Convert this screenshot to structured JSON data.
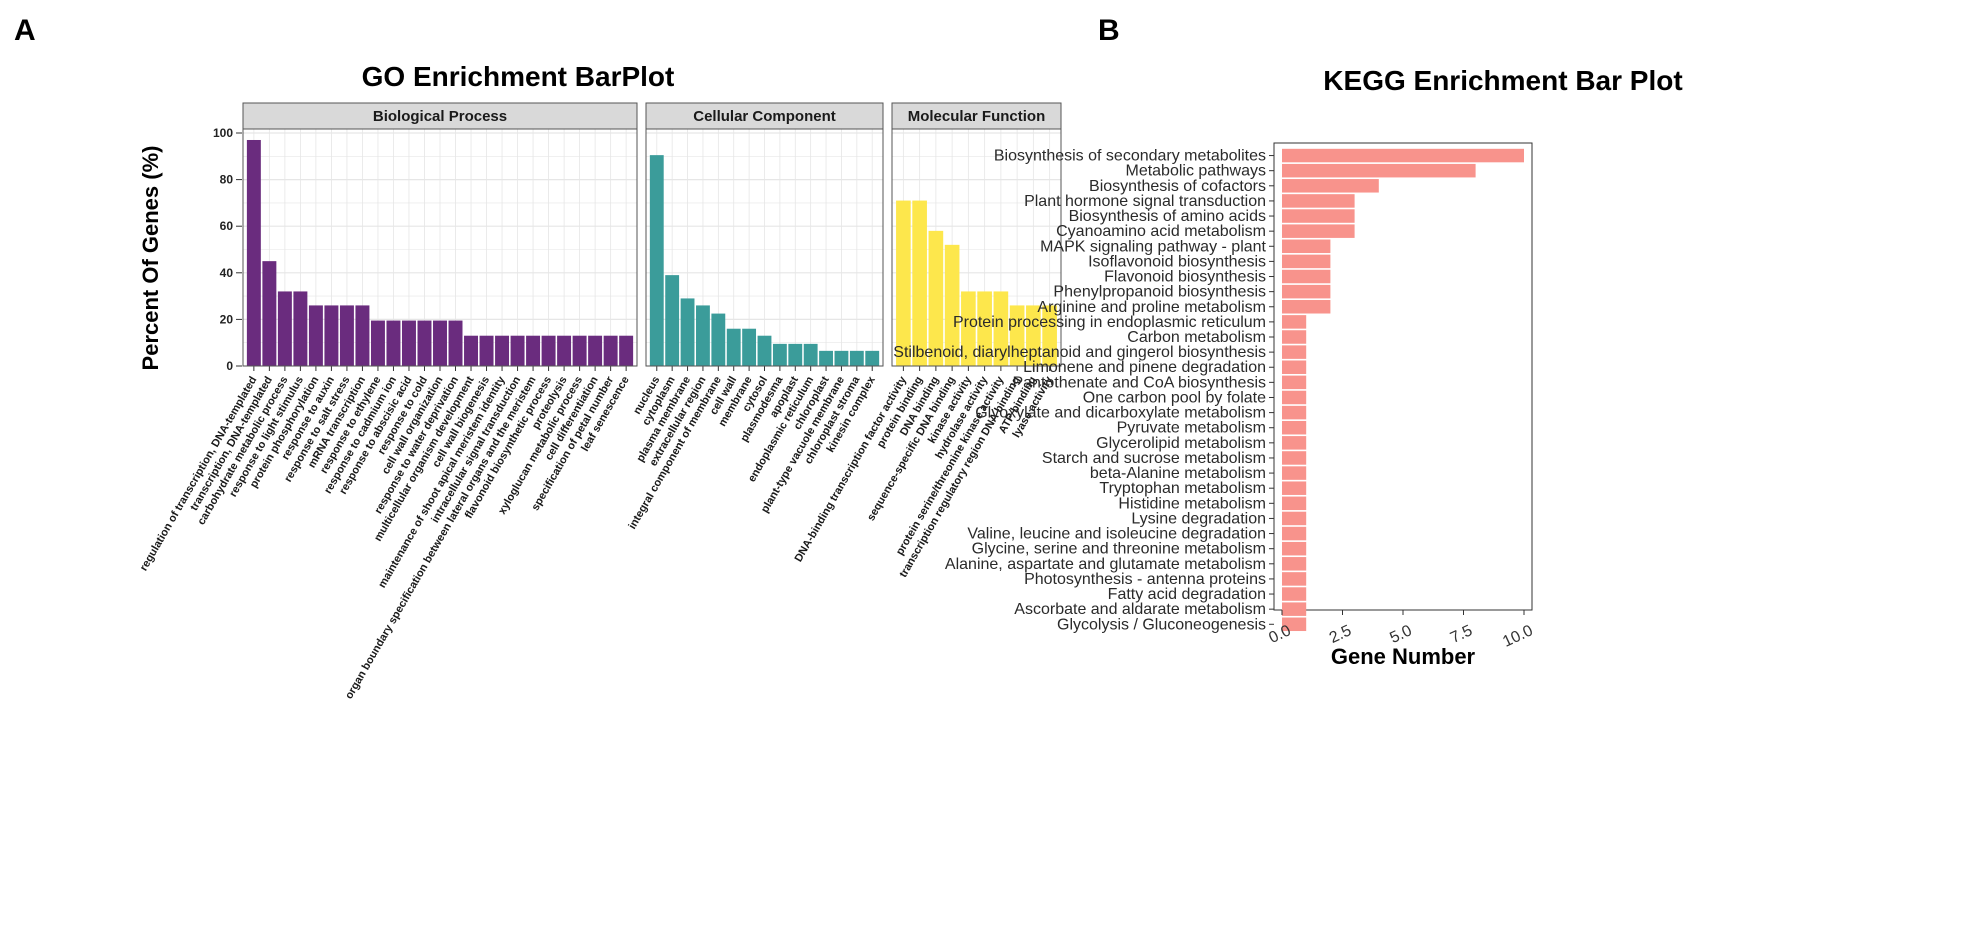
{
  "panel_labels": {
    "left": "A",
    "right": "B"
  },
  "colors": {
    "biological_process": "#6a2c7e",
    "cellular_component": "#3b9c9a",
    "molecular_function": "#fde74c",
    "kegg_bar": "#f8938c",
    "strip_bg": "#d9d9d9",
    "grid": "#e6e6e6"
  },
  "chart_data": [
    {
      "type": "bar",
      "title": "GO Enrichment BarPlot",
      "ylabel": "Percent Of Genes (%)",
      "xlabel": "",
      "ylim": [
        0,
        100
      ],
      "yticks": [
        0,
        20,
        40,
        60,
        80,
        100
      ],
      "grid": true,
      "facets": [
        {
          "name": "Biological Process",
          "color": "#6a2c7e",
          "categories": [
            "regulation of transcription, DNA-templated",
            "transcription, DNA-templated",
            "carbohydrate metabolic process",
            "response to light stimulus",
            "protein phosphorylation",
            "response to auxin",
            "response to salt stress",
            "mRNA transcription",
            "response to ethylene",
            "response to cadmium ion",
            "response to abscisic acid",
            "response to cold",
            "cell wall organization",
            "response to water deprivation",
            "multicellular organism development",
            "cell wall biogenesis",
            "maintenance of shoot apical meristem identity",
            "intracellular signal transduction",
            "organ boundary specification between lateral organs and the meristem",
            "flavonoid biosynthetic process",
            "proteolysis",
            "xyloglucan metabolic process",
            "cell differentiation",
            "specification of petal number",
            "leaf senescence"
          ],
          "values": [
            97,
            45,
            32,
            32,
            26,
            26,
            26,
            26,
            19.5,
            19.5,
            19.5,
            19.5,
            19.5,
            19.5,
            13,
            13,
            13,
            13,
            13,
            13,
            13,
            13,
            13,
            13,
            13
          ]
        },
        {
          "name": "Cellular Component",
          "color": "#3b9c9a",
          "categories": [
            "nucleus",
            "cytoplasm",
            "plasma membrane",
            "extracellular region",
            "integral component of membrane",
            "cell wall",
            "membrane",
            "cytosol",
            "plasmodesma",
            "apoplast",
            "endoplasmic reticulum",
            "chloroplast",
            "plant-type vacuole membrane",
            "chloroplast stroma",
            "kinesin complex"
          ],
          "values": [
            90.5,
            39,
            29,
            26,
            22.5,
            16,
            16,
            13,
            9.5,
            9.5,
            9.5,
            6.5,
            6.5,
            6.5,
            6.5
          ]
        },
        {
          "name": "Molecular Function",
          "color": "#fde74c",
          "categories": [
            "DNA-binding transcription factor activity",
            "protein binding",
            "DNA binding",
            "sequence-specific DNA binding",
            "kinase activity",
            "hydrolase activity",
            "protein serine/threonine kinase activity",
            "transcription regulatory region DNA binding",
            "ATP binding",
            "lyase activity"
          ],
          "values": [
            71,
            71,
            58,
            52,
            32,
            32,
            32,
            26,
            26,
            26
          ]
        }
      ]
    },
    {
      "type": "bar",
      "orientation": "horizontal",
      "title": "KEGG Enrichment Bar Plot",
      "xlabel": "Gene Number",
      "ylabel": "",
      "xlim": [
        0,
        10
      ],
      "xticks": [
        "0.0",
        "2.5",
        "5.0",
        "7.5",
        "10.0"
      ],
      "grid": false,
      "categories": [
        "Biosynthesis of secondary metabolites",
        "Metabolic pathways",
        "Biosynthesis of cofactors",
        "Plant hormone signal transduction",
        "Biosynthesis of amino acids",
        "Cyanoamino acid metabolism",
        "MAPK signaling pathway - plant",
        "Isoflavonoid biosynthesis",
        "Flavonoid biosynthesis",
        "Phenylpropanoid biosynthesis",
        "Arginine and proline metabolism",
        "Protein processing in endoplasmic reticulum",
        "Carbon metabolism",
        "Stilbenoid, diarylheptanoid and gingerol biosynthesis",
        "Limonene and pinene degradation",
        "Pantothenate and CoA biosynthesis",
        "One carbon pool by folate",
        "Glyoxylate and dicarboxylate metabolism",
        "Pyruvate metabolism",
        "Glycerolipid metabolism",
        "Starch and sucrose metabolism",
        "beta-Alanine metabolism",
        "Tryptophan metabolism",
        "Histidine metabolism",
        "Lysine degradation",
        "Valine, leucine and isoleucine degradation",
        "Glycine, serine and threonine metabolism",
        "Alanine, aspartate and glutamate metabolism",
        "Photosynthesis - antenna proteins",
        "Fatty acid degradation",
        "Ascorbate and aldarate metabolism",
        "Glycolysis / Gluconeogenesis"
      ],
      "values": [
        10,
        8,
        4,
        3,
        3,
        3,
        2,
        2,
        2,
        2,
        2,
        1,
        1,
        1,
        1,
        1,
        1,
        1,
        1,
        1,
        1,
        1,
        1,
        1,
        1,
        1,
        1,
        1,
        1,
        1,
        1,
        1
      ]
    }
  ]
}
